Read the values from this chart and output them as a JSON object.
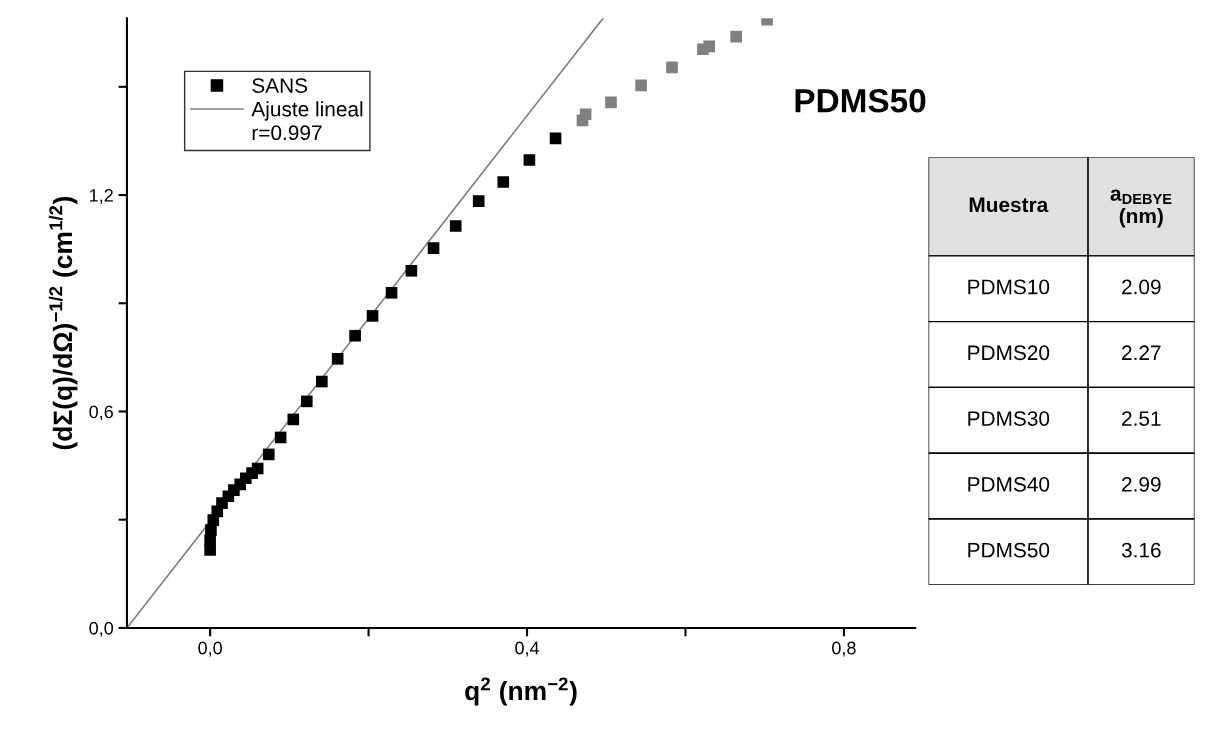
{
  "chart_data": [
    {
      "type": "scatter",
      "xlabel": "q$^{2}$ (nm$^{−2}$)",
      "ylabel": "(dΣ(q)/dΩ)$^{−1/2}$ (cm$^{1/2}$)",
      "xlim": [
        -0.105,
        0.89
      ],
      "ylim": [
        0,
        1.69
      ],
      "xticks": [
        {
          "value": 0,
          "label": "0,0"
        },
        {
          "value": 0.2,
          "label": null
        },
        {
          "value": 0.4,
          "label": "0,4"
        },
        {
          "value": 0.6,
          "label": null
        },
        {
          "value": 0.8,
          "label": "0,8"
        }
      ],
      "yticks": [
        {
          "value": 0,
          "label": "0,0"
        },
        {
          "value": 0.3,
          "label": null
        },
        {
          "value": 0.6,
          "label": "0,6"
        },
        {
          "value": 0.9,
          "label": null
        },
        {
          "value": 1.2,
          "label": "1,2"
        },
        {
          "value": 1.5,
          "label": null
        }
      ],
      "grid": false,
      "legend": "top left",
      "series": [
        {
          "name": "SANS",
          "type": "scatter",
          "marker": "square",
          "color": "#000000",
          "x": [
            0,
            0,
            0.001,
            0.004,
            0.009,
            0.015,
            0.023,
            0.03,
            0.038,
            0.045,
            0.053,
            0.06,
            0.074,
            0.089,
            0.105,
            0.122,
            0.141,
            0.161,
            0.183,
            0.205,
            0.229,
            0.254,
            0.282,
            0.31,
            0.339,
            0.37,
            0.403,
            0.436
          ],
          "values": [
            0.216,
            0.243,
            0.271,
            0.299,
            0.323,
            0.346,
            0.365,
            0.382,
            0.398,
            0.415,
            0.429,
            0.442,
            0.481,
            0.528,
            0.578,
            0.628,
            0.683,
            0.746,
            0.81,
            0.865,
            0.929,
            0.99,
            1.053,
            1.114,
            1.183,
            1.236,
            1.297,
            1.357
          ]
        },
        {
          "type": "scatter",
          "marker": "square",
          "color": "#808080",
          "x": [
            0.47,
            0.474,
            0.506,
            0.544,
            0.583,
            0.622,
            0.63,
            0.664,
            0.703
          ],
          "values": [
            1.407,
            1.424,
            1.457,
            1.504,
            1.554,
            1.604,
            1.612,
            1.639,
            1.686
          ]
        },
        {
          "name": "Ajuste lineal",
          "type": "line",
          "color": "#808080",
          "line_style": "solid",
          "x": [
            -0.105,
            0.496
          ],
          "values": [
            0,
            1.69
          ]
        }
      ],
      "annotations": [
        "r=0.997",
        "PDMS50"
      ]
    },
    {
      "type": "other",
      "annotations": [
        "Muestra",
        "a$_{DEBYE}$\n(nm)",
        "PDMS10",
        "2.09",
        "PDMS20",
        "2.27",
        "PDMS30",
        "2.51",
        "PDMS40",
        "2.99",
        "PDMS50",
        "3.16"
      ]
    }
  ]
}
